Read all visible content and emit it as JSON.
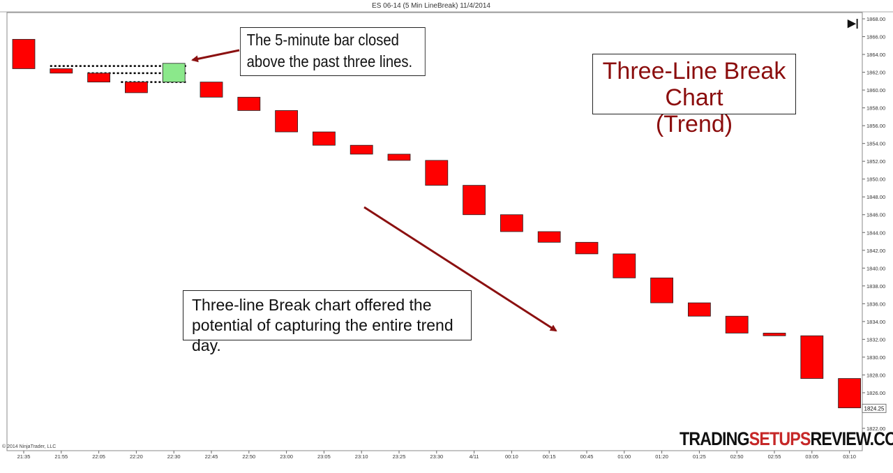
{
  "header": {
    "title": "ES 06-14 (5 Min LineBreak)  11/4/2014"
  },
  "chart_data": {
    "type": "three-line-break",
    "title": "Three-Line Break Chart (Trend)",
    "ylim": [
      1822,
      1868
    ],
    "yticks": [
      1822,
      1824,
      1826,
      1828,
      1830,
      1832,
      1834,
      1836,
      1838,
      1840,
      1842,
      1844,
      1846,
      1848,
      1850,
      1852,
      1854,
      1856,
      1858,
      1860,
      1862,
      1864,
      1866,
      1868
    ],
    "x_labels": [
      "21:35",
      "21:55",
      "22:05",
      "22:20",
      "22:30",
      "22:45",
      "22:50",
      "23:00",
      "23:05",
      "23:10",
      "23:25",
      "23:30",
      "4/11",
      "00:10",
      "00:15",
      "00:45",
      "01:00",
      "01:20",
      "01:25",
      "02:50",
      "02:55",
      "03:05",
      "03:10"
    ],
    "bars": [
      {
        "top": 1865.7,
        "bottom": 1862.4,
        "color": "#ff0000"
      },
      {
        "top": 1862.4,
        "bottom": 1861.9,
        "color": "#ff0000"
      },
      {
        "top": 1861.9,
        "bottom": 1860.9,
        "color": "#ff0000"
      },
      {
        "top": 1860.9,
        "bottom": 1859.7,
        "color": "#ff0000"
      },
      {
        "top": 1863.0,
        "bottom": 1860.9,
        "color": "#8be88b"
      },
      {
        "top": 1860.9,
        "bottom": 1859.2,
        "color": "#ff0000"
      },
      {
        "top": 1859.2,
        "bottom": 1857.7,
        "color": "#ff0000"
      },
      {
        "top": 1857.7,
        "bottom": 1855.3,
        "color": "#ff0000"
      },
      {
        "top": 1855.3,
        "bottom": 1853.8,
        "color": "#ff0000"
      },
      {
        "top": 1853.8,
        "bottom": 1852.8,
        "color": "#ff0000"
      },
      {
        "top": 1852.8,
        "bottom": 1852.1,
        "color": "#ff0000"
      },
      {
        "top": 1852.1,
        "bottom": 1849.3,
        "color": "#ff0000"
      },
      {
        "top": 1849.3,
        "bottom": 1846.0,
        "color": "#ff0000"
      },
      {
        "top": 1846.0,
        "bottom": 1844.1,
        "color": "#ff0000"
      },
      {
        "top": 1844.1,
        "bottom": 1842.9,
        "color": "#ff0000"
      },
      {
        "top": 1842.9,
        "bottom": 1841.6,
        "color": "#ff0000"
      },
      {
        "top": 1841.6,
        "bottom": 1838.9,
        "color": "#ff0000"
      },
      {
        "top": 1838.9,
        "bottom": 1836.1,
        "color": "#ff0000"
      },
      {
        "top": 1836.1,
        "bottom": 1834.6,
        "color": "#ff0000"
      },
      {
        "top": 1834.6,
        "bottom": 1832.7,
        "color": "#ff0000"
      },
      {
        "top": 1832.7,
        "bottom": 1832.4,
        "color": "#ff0000"
      },
      {
        "top": 1832.4,
        "bottom": 1827.6,
        "color": "#ff0000"
      },
      {
        "top": 1827.6,
        "bottom": 1824.3,
        "color": "#ff0000"
      }
    ],
    "last_price": "1824.25",
    "reference_lines": [
      1862.7,
      1861.9,
      1860.9
    ]
  },
  "callouts": {
    "top": [
      "The 5-minute bar closed",
      "above the past three lines."
    ],
    "mid": [
      "Three-line Break chart offered the",
      "potential of capturing the entire trend day."
    ]
  },
  "title_box": {
    "line1": "Three-Line Break Chart",
    "line2": "(Trend)"
  },
  "brand": {
    "part1": "TRADING",
    "part2": "SETUPS",
    "part3": "REVIEW.COM"
  },
  "copyright": "© 2014 NinjaTrader, LLC",
  "play_icon": "skip-to-end-icon",
  "colors": {
    "bear": "#ff0000",
    "bull": "#8be88b",
    "arrow": "#8b1010",
    "title": "#8b0d0d",
    "brand_highlight": "#c62828"
  }
}
